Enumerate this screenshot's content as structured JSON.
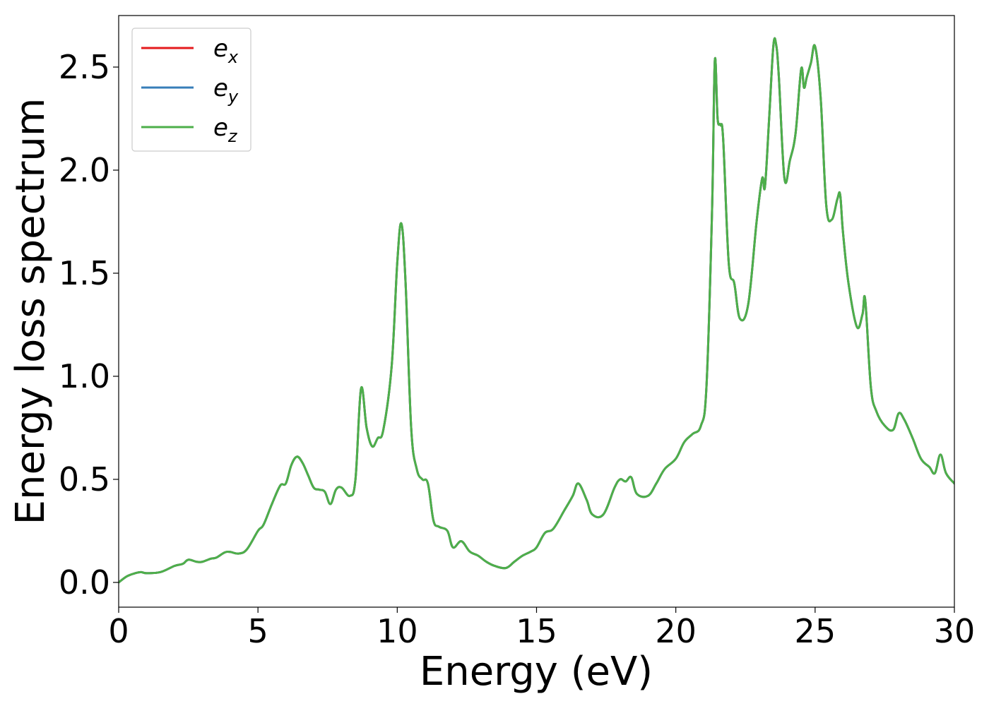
{
  "chart_data": {
    "type": "line",
    "xlabel": "Energy (eV)",
    "ylabel": "Energy loss spectrum",
    "xlim": [
      0,
      30
    ],
    "ylim": [
      -0.12,
      2.75
    ],
    "xticks": [
      0,
      5,
      10,
      15,
      20,
      25,
      30
    ],
    "xtick_labels": [
      "0",
      "5",
      "10",
      "15",
      "20",
      "25",
      "30"
    ],
    "yticks": [
      0.0,
      0.5,
      1.0,
      1.5,
      2.0,
      2.5
    ],
    "ytick_labels": [
      "0.0",
      "0.5",
      "1.0",
      "1.5",
      "2.0",
      "2.5"
    ],
    "grid": false,
    "legend_position": "top-left",
    "series": [
      {
        "name": "e",
        "subscript": "x",
        "color": "#e41a1c",
        "data_ref": "shared"
      },
      {
        "name": "e",
        "subscript": "y",
        "color": "#377eb8",
        "data_ref": "shared"
      },
      {
        "name": "e",
        "subscript": "z",
        "color": "#4daf4a",
        "data_ref": "shared"
      }
    ],
    "x": [
      0,
      0.3,
      0.6,
      0.8,
      1.0,
      1.5,
      2.0,
      2.3,
      2.5,
      2.8,
      3.0,
      3.3,
      3.5,
      3.8,
      4.0,
      4.3,
      4.6,
      5.0,
      5.2,
      5.5,
      5.8,
      6.0,
      6.2,
      6.4,
      6.6,
      6.8,
      7.0,
      7.2,
      7.4,
      7.6,
      7.8,
      8.0,
      8.3,
      8.5,
      8.7,
      8.9,
      9.1,
      9.3,
      9.5,
      9.8,
      10.0,
      10.15,
      10.3,
      10.5,
      10.7,
      10.9,
      11.1,
      11.3,
      11.5,
      11.8,
      12.0,
      12.3,
      12.6,
      12.9,
      13.2,
      13.5,
      13.9,
      14.2,
      14.5,
      14.8,
      15.0,
      15.3,
      15.6,
      16.0,
      16.3,
      16.5,
      16.8,
      17.0,
      17.4,
      17.8,
      18.0,
      18.2,
      18.4,
      18.6,
      19.0,
      19.3,
      19.6,
      20.0,
      20.3,
      20.6,
      20.9,
      21.1,
      21.3,
      21.4,
      21.5,
      21.6,
      21.7,
      21.9,
      22.1,
      22.3,
      22.6,
      22.9,
      23.1,
      23.2,
      23.35,
      23.5,
      23.6,
      23.7,
      23.9,
      24.1,
      24.3,
      24.5,
      24.6,
      24.7,
      24.85,
      25.0,
      25.2,
      25.4,
      25.6,
      25.8,
      25.9,
      26.0,
      26.2,
      26.5,
      26.7,
      26.8,
      27.0,
      27.2,
      27.5,
      27.8,
      28.0,
      28.2,
      28.5,
      28.8,
      29.1,
      29.3,
      29.5,
      29.7,
      30.0
    ],
    "y": [
      0.0,
      0.03,
      0.045,
      0.05,
      0.045,
      0.05,
      0.08,
      0.09,
      0.11,
      0.1,
      0.1,
      0.115,
      0.12,
      0.145,
      0.148,
      0.14,
      0.16,
      0.25,
      0.28,
      0.38,
      0.47,
      0.48,
      0.57,
      0.61,
      0.58,
      0.52,
      0.46,
      0.45,
      0.44,
      0.38,
      0.45,
      0.46,
      0.42,
      0.5,
      0.94,
      0.75,
      0.66,
      0.7,
      0.74,
      1.05,
      1.55,
      1.74,
      1.45,
      0.75,
      0.55,
      0.5,
      0.48,
      0.3,
      0.27,
      0.25,
      0.17,
      0.2,
      0.15,
      0.13,
      0.1,
      0.08,
      0.07,
      0.1,
      0.13,
      0.15,
      0.17,
      0.24,
      0.26,
      0.35,
      0.42,
      0.48,
      0.4,
      0.33,
      0.33,
      0.46,
      0.5,
      0.49,
      0.51,
      0.43,
      0.42,
      0.48,
      0.55,
      0.6,
      0.68,
      0.72,
      0.76,
      0.95,
      1.8,
      2.53,
      2.25,
      2.22,
      2.15,
      1.55,
      1.45,
      1.28,
      1.35,
      1.75,
      1.96,
      1.92,
      2.25,
      2.6,
      2.61,
      2.45,
      1.96,
      2.05,
      2.18,
      2.49,
      2.4,
      2.45,
      2.52,
      2.6,
      2.35,
      1.83,
      1.76,
      1.86,
      1.88,
      1.7,
      1.45,
      1.24,
      1.3,
      1.37,
      0.95,
      0.83,
      0.76,
      0.74,
      0.82,
      0.79,
      0.7,
      0.6,
      0.56,
      0.53,
      0.62,
      0.53,
      0.48
    ]
  }
}
